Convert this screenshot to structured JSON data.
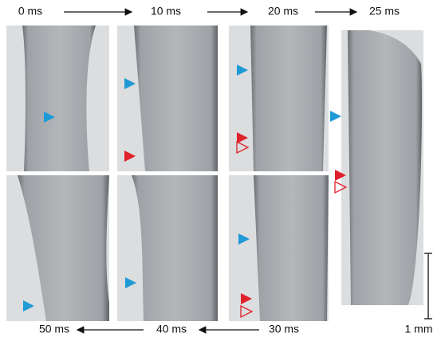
{
  "time_labels": {
    "top": [
      "0 ms",
      "10 ms",
      "20 ms",
      "25 ms"
    ],
    "bottom": [
      "50 ms",
      "40 ms",
      "30 ms"
    ]
  },
  "scale_bar": "1 mm"
}
